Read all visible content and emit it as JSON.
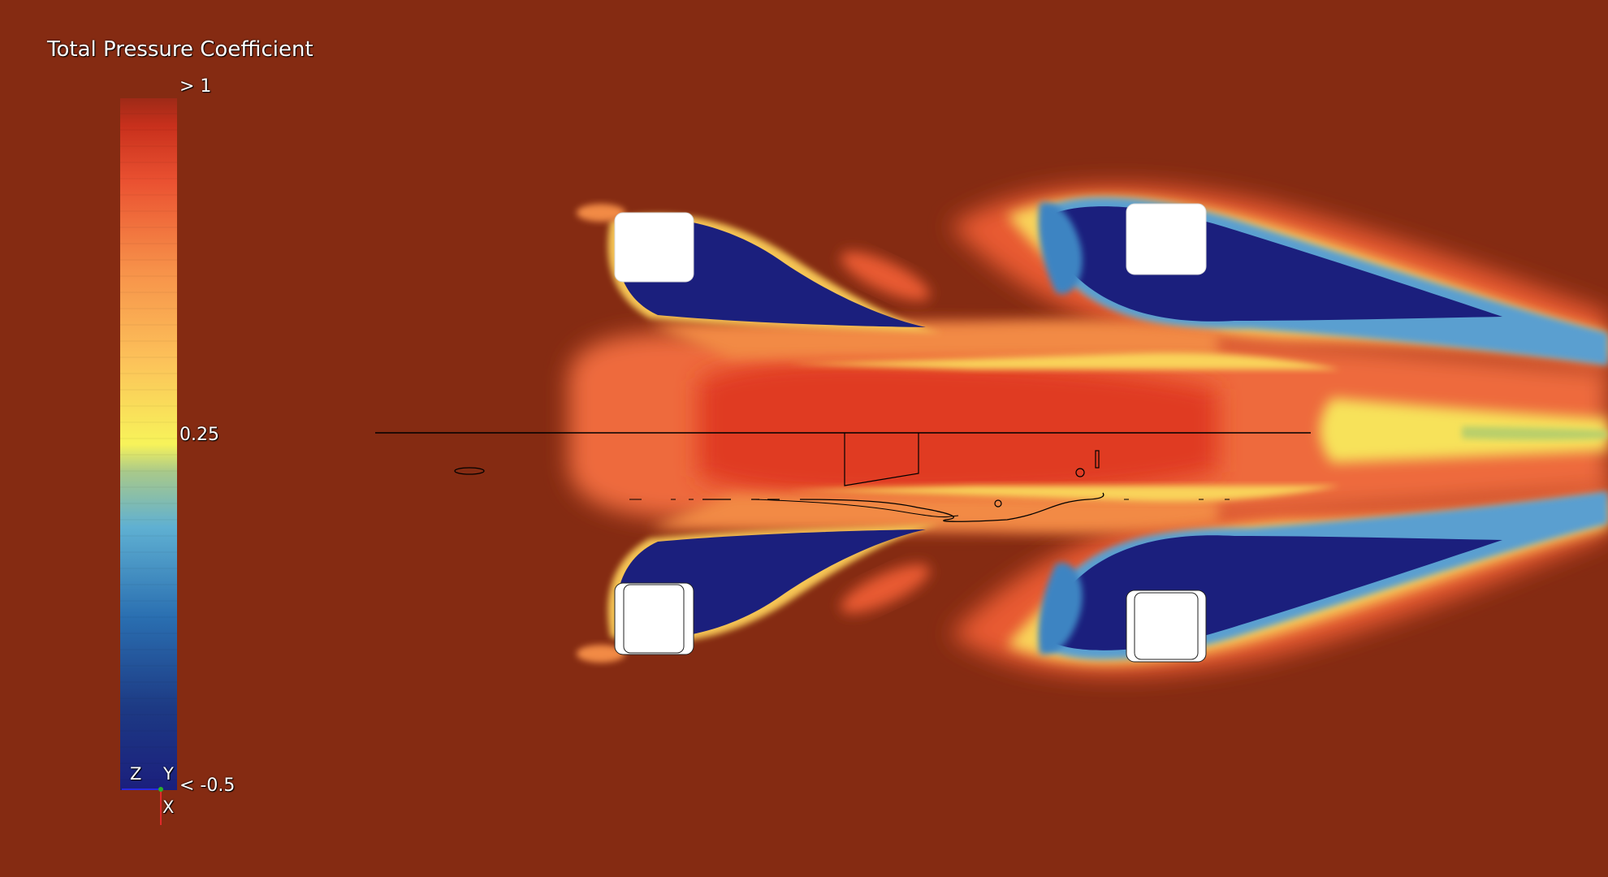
{
  "legend": {
    "title": "Total Pressure Coefficient",
    "max_label": "> 1",
    "mid_label": "0.25",
    "min_label": "< -0.5",
    "range": [
      -0.5,
      1
    ],
    "colormap": [
      "#1b1f7d",
      "#1f4e94",
      "#2a76b8",
      "#5aa8cc",
      "#a8c98c",
      "#f5f055",
      "#fbc55a",
      "#f7934a",
      "#ec5b34",
      "#d7331f",
      "#9a2a16"
    ]
  },
  "axes_triad": {
    "z": "Z",
    "y": "Y",
    "x": "X"
  },
  "colors": {
    "background": "#852b12",
    "low": "#1b1f7d",
    "mid": "#f5f055",
    "high": "#e63c23",
    "geometry": "#ffffff",
    "outline": "#000000"
  },
  "icons": [
    "axes-triad-icon"
  ]
}
